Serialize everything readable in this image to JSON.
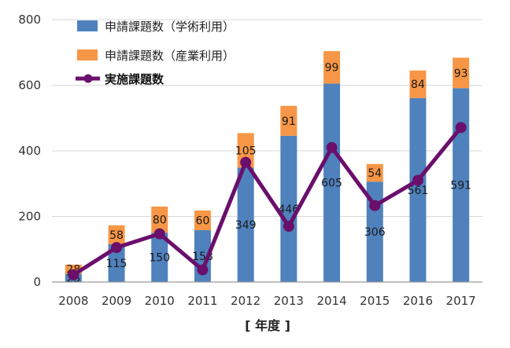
{
  "chart_data": {
    "type": "bar",
    "categories": [
      "2008",
      "2009",
      "2010",
      "2011",
      "2012",
      "2013",
      "2014",
      "2015",
      "2016",
      "2017"
    ],
    "series": [
      {
        "name": "申請課題数（学術利用）",
        "kind": "stacked-bar",
        "color": "#4F81BD",
        "values": [
          25,
          115,
          150,
          158,
          349,
          446,
          605,
          306,
          561,
          591
        ],
        "labels": [
          "25",
          "115",
          "150",
          "158",
          "349",
          "446",
          "605",
          "306",
          "561",
          "591"
        ]
      },
      {
        "name": "申請課題数（産業利用）",
        "kind": "stacked-bar",
        "color": "#F79646",
        "values": [
          28,
          58,
          80,
          60,
          105,
          91,
          99,
          54,
          84,
          93
        ],
        "labels": [
          "28",
          "58",
          "80",
          "60",
          "105",
          "91",
          "99",
          "54",
          "84",
          "93"
        ]
      },
      {
        "name": "実施課題数",
        "kind": "line",
        "color": "#6A0F6B",
        "values": [
          22,
          105,
          147,
          37,
          365,
          170,
          410,
          233,
          310,
          471
        ]
      }
    ],
    "yticks": [
      "0",
      "200",
      "400",
      "600",
      "800"
    ],
    "ylim": [
      0,
      800
    ],
    "xlabel": "[ 年度 ]",
    "ylabel": "",
    "grid": true,
    "legend_position": "top-left"
  }
}
